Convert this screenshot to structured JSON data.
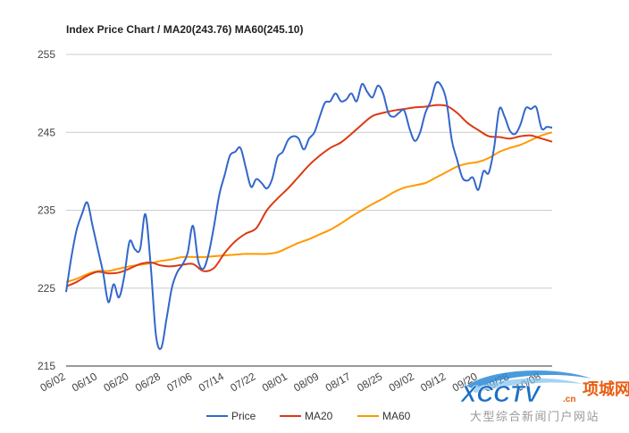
{
  "chart_data": {
    "type": "line",
    "title": "Index Price Chart / MA20(243.76) MA60(245.10)",
    "ylim": [
      215,
      255
    ],
    "y_ticks": [
      215,
      225,
      235,
      245,
      255
    ],
    "x_tick_labels": [
      "06/02",
      "06/10",
      "06/20",
      "06/28",
      "07/06",
      "07/14",
      "07/22",
      "08/01",
      "08/09",
      "08/17",
      "08/25",
      "09/02",
      "09/12",
      "09/20",
      "09/28",
      "10/08"
    ],
    "x_tick_positions": [
      0,
      6,
      12,
      18,
      24,
      30,
      36,
      42,
      48,
      54,
      60,
      66,
      72,
      78,
      84,
      90
    ],
    "grid": true,
    "legend_position": "bottom",
    "series": [
      {
        "name": "Price",
        "color": "#3366cc",
        "points": [
          [
            0,
            224.5
          ],
          [
            1,
            229
          ],
          [
            2,
            232.5
          ],
          [
            3,
            234.5
          ],
          [
            4,
            236
          ],
          [
            5,
            233
          ],
          [
            6,
            230
          ],
          [
            7,
            227
          ],
          [
            8,
            223.2
          ],
          [
            9,
            225.5
          ],
          [
            10,
            223.8
          ],
          [
            11,
            226.5
          ],
          [
            12,
            231
          ],
          [
            13,
            230
          ],
          [
            14,
            230
          ],
          [
            15,
            234.5
          ],
          [
            16,
            228
          ],
          [
            17,
            219
          ],
          [
            18,
            217.3
          ],
          [
            19,
            221
          ],
          [
            20,
            225
          ],
          [
            21,
            227
          ],
          [
            22,
            228
          ],
          [
            23,
            229.5
          ],
          [
            24,
            233
          ],
          [
            25,
            228.5
          ],
          [
            26,
            227.5
          ],
          [
            27,
            229.5
          ],
          [
            28,
            233
          ],
          [
            29,
            237
          ],
          [
            30,
            239.5
          ],
          [
            31,
            242
          ],
          [
            32,
            242.5
          ],
          [
            33,
            243
          ],
          [
            34,
            240.5
          ],
          [
            35,
            238
          ],
          [
            36,
            239
          ],
          [
            37,
            238.5
          ],
          [
            38,
            237.8
          ],
          [
            39,
            239
          ],
          [
            40,
            241.8
          ],
          [
            41,
            242.5
          ],
          [
            42,
            244
          ],
          [
            43,
            244.5
          ],
          [
            44,
            244.2
          ],
          [
            45,
            242.8
          ],
          [
            46,
            244.2
          ],
          [
            47,
            245
          ],
          [
            48,
            247
          ],
          [
            49,
            248.8
          ],
          [
            50,
            249
          ],
          [
            51,
            250
          ],
          [
            52,
            249
          ],
          [
            53,
            249.2
          ],
          [
            54,
            250
          ],
          [
            55,
            249
          ],
          [
            56,
            251.2
          ],
          [
            57,
            250.2
          ],
          [
            58,
            249.5
          ],
          [
            59,
            251
          ],
          [
            60,
            250
          ],
          [
            61,
            247.5
          ],
          [
            62,
            247
          ],
          [
            63,
            247.5
          ],
          [
            64,
            247.8
          ],
          [
            65,
            245.5
          ],
          [
            66,
            243.9
          ],
          [
            67,
            245
          ],
          [
            68,
            247.5
          ],
          [
            69,
            249
          ],
          [
            70,
            251.3
          ],
          [
            71,
            251
          ],
          [
            72,
            249
          ],
          [
            73,
            244
          ],
          [
            74,
            241.5
          ],
          [
            75,
            239.2
          ],
          [
            76,
            238.8
          ],
          [
            77,
            239.2
          ],
          [
            78,
            237.6
          ],
          [
            79,
            240
          ],
          [
            80,
            239.8
          ],
          [
            81,
            243
          ],
          [
            82,
            248
          ],
          [
            83,
            247
          ],
          [
            84,
            245.2
          ],
          [
            85,
            244.8
          ],
          [
            86,
            246
          ],
          [
            87,
            248.1
          ],
          [
            88,
            248
          ],
          [
            89,
            248.2
          ],
          [
            90,
            245.5
          ],
          [
            91,
            245.7
          ],
          [
            92,
            245.6
          ]
        ]
      },
      {
        "name": "MA20",
        "color": "#dc3912",
        "points": [
          [
            0,
            225.2
          ],
          [
            2,
            225.8
          ],
          [
            4,
            226.6
          ],
          [
            6,
            227.1
          ],
          [
            8,
            226.9
          ],
          [
            10,
            227
          ],
          [
            12,
            227.5
          ],
          [
            14,
            228.1
          ],
          [
            16,
            228.3
          ],
          [
            18,
            227.9
          ],
          [
            20,
            227.8
          ],
          [
            22,
            228
          ],
          [
            24,
            228.1
          ],
          [
            26,
            227.2
          ],
          [
            28,
            227.6
          ],
          [
            30,
            229.5
          ],
          [
            32,
            231
          ],
          [
            34,
            232
          ],
          [
            36,
            232.7
          ],
          [
            38,
            235
          ],
          [
            40,
            236.5
          ],
          [
            42,
            237.8
          ],
          [
            44,
            239.3
          ],
          [
            46,
            240.8
          ],
          [
            48,
            242
          ],
          [
            50,
            243
          ],
          [
            52,
            243.7
          ],
          [
            54,
            244.8
          ],
          [
            56,
            246
          ],
          [
            58,
            247.1
          ],
          [
            60,
            247.5
          ],
          [
            62,
            247.8
          ],
          [
            64,
            248
          ],
          [
            66,
            248.2
          ],
          [
            68,
            248.3
          ],
          [
            70,
            248.5
          ],
          [
            72,
            248.4
          ],
          [
            74,
            247.5
          ],
          [
            76,
            246.2
          ],
          [
            78,
            245.3
          ],
          [
            80,
            244.5
          ],
          [
            82,
            244.4
          ],
          [
            84,
            244.2
          ],
          [
            86,
            244.5
          ],
          [
            88,
            244.6
          ],
          [
            90,
            244.2
          ],
          [
            92,
            243.8
          ]
        ]
      },
      {
        "name": "MA60",
        "color": "#ff9900",
        "points": [
          [
            0,
            225.8
          ],
          [
            2,
            226.2
          ],
          [
            4,
            226.8
          ],
          [
            6,
            227.2
          ],
          [
            8,
            227.2
          ],
          [
            10,
            227.5
          ],
          [
            12,
            227.8
          ],
          [
            14,
            228
          ],
          [
            16,
            228.2
          ],
          [
            18,
            228.5
          ],
          [
            20,
            228.7
          ],
          [
            22,
            229
          ],
          [
            24,
            229
          ],
          [
            26,
            229
          ],
          [
            28,
            229.1
          ],
          [
            30,
            229.2
          ],
          [
            32,
            229.3
          ],
          [
            34,
            229.4
          ],
          [
            36,
            229.4
          ],
          [
            38,
            229.4
          ],
          [
            40,
            229.6
          ],
          [
            42,
            230.2
          ],
          [
            44,
            230.8
          ],
          [
            46,
            231.3
          ],
          [
            48,
            231.9
          ],
          [
            50,
            232.5
          ],
          [
            52,
            233.3
          ],
          [
            54,
            234.2
          ],
          [
            56,
            235
          ],
          [
            58,
            235.8
          ],
          [
            60,
            236.5
          ],
          [
            62,
            237.3
          ],
          [
            64,
            237.9
          ],
          [
            66,
            238.2
          ],
          [
            68,
            238.5
          ],
          [
            70,
            239.2
          ],
          [
            72,
            239.9
          ],
          [
            74,
            240.6
          ],
          [
            76,
            241
          ],
          [
            78,
            241.2
          ],
          [
            80,
            241.7
          ],
          [
            82,
            242.5
          ],
          [
            84,
            243
          ],
          [
            86,
            243.4
          ],
          [
            88,
            244
          ],
          [
            90,
            244.6
          ],
          [
            92,
            245
          ]
        ]
      }
    ]
  },
  "watermark": {
    "brand": "XCCTV",
    "domain_suffix": ".cn",
    "site_name": "项城网",
    "tagline": "大型综合新闻门户网站"
  }
}
